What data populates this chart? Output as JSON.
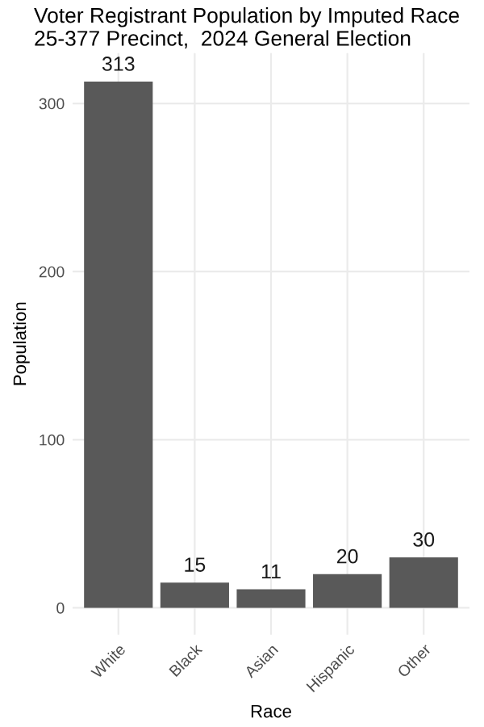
{
  "chart_data": {
    "type": "bar",
    "title": "Voter Registrant Population by Imputed Race\n25-377 Precinct,  2024 General Election",
    "xlabel": "Race",
    "ylabel": "Population",
    "categories": [
      "White",
      "Black",
      "Asian",
      "Hispanic",
      "Other"
    ],
    "values": [
      313,
      15,
      11,
      20,
      30
    ],
    "color": "#595959",
    "data_labels": true,
    "ylim": [
      -16,
      330
    ],
    "yticks": [
      0,
      100,
      200,
      300
    ],
    "grid": true
  }
}
